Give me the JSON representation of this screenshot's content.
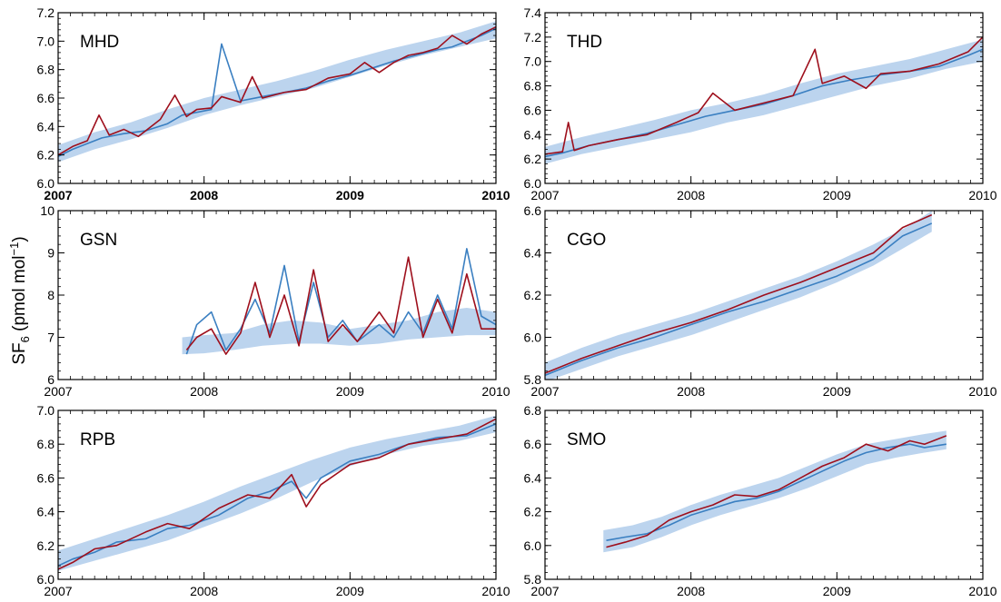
{
  "figure": {
    "ylabel_main": "SF",
    "ylabel_sub": "6",
    "ylabel_units_pre": " (pmol mol",
    "ylabel_units_sup": "−1",
    "ylabel_units_post": ")"
  },
  "colors": {
    "band": "#bcd4ee",
    "model": "#3a7fc1",
    "obs": "#9e0f1c",
    "axis": "#000000"
  },
  "chart_data": [
    {
      "type": "line",
      "station": "MHD",
      "xlim": [
        2007,
        2010
      ],
      "ylim": [
        6.0,
        7.2
      ],
      "yticks": [
        "6.0",
        "6.2",
        "6.4",
        "6.6",
        "6.8",
        "7.0",
        "7.2"
      ],
      "xticks": [
        "2007",
        "2008",
        "2009",
        "2010"
      ],
      "xtick_bold": true,
      "series": [
        {
          "role": "band",
          "x": [
            2007.0,
            2007.25,
            2007.5,
            2007.75,
            2008.0,
            2008.25,
            2008.5,
            2008.75,
            2009.0,
            2009.25,
            2009.5,
            2009.75,
            2010.0
          ],
          "upper": [
            6.27,
            6.36,
            6.43,
            6.52,
            6.6,
            6.66,
            6.72,
            6.79,
            6.87,
            6.94,
            7.0,
            7.06,
            7.14
          ],
          "lower": [
            6.15,
            6.24,
            6.31,
            6.39,
            6.48,
            6.55,
            6.61,
            6.67,
            6.75,
            6.83,
            6.9,
            6.96,
            7.02
          ]
        },
        {
          "role": "model",
          "x": [
            2007.0,
            2007.1,
            2007.2,
            2007.3,
            2007.45,
            2007.6,
            2007.75,
            2007.85,
            2007.95,
            2008.05,
            2008.12,
            2008.25,
            2008.4,
            2008.55,
            2008.7,
            2008.85,
            2009.0,
            2009.15,
            2009.3,
            2009.45,
            2009.6,
            2009.7,
            2009.8,
            2009.9,
            2010.0
          ],
          "y": [
            6.19,
            6.24,
            6.28,
            6.32,
            6.35,
            6.37,
            6.42,
            6.48,
            6.5,
            6.52,
            6.98,
            6.58,
            6.61,
            6.64,
            6.67,
            6.72,
            6.76,
            6.81,
            6.86,
            6.9,
            6.94,
            6.96,
            7.0,
            7.04,
            7.09
          ]
        },
        {
          "role": "obs",
          "x": [
            2007.0,
            2007.1,
            2007.2,
            2007.28,
            2007.35,
            2007.45,
            2007.55,
            2007.7,
            2007.8,
            2007.88,
            2007.95,
            2008.05,
            2008.12,
            2008.25,
            2008.33,
            2008.4,
            2008.55,
            2008.7,
            2008.85,
            2009.0,
            2009.1,
            2009.2,
            2009.3,
            2009.4,
            2009.5,
            2009.6,
            2009.7,
            2009.8,
            2009.9,
            2010.0
          ],
          "y": [
            6.2,
            6.26,
            6.3,
            6.48,
            6.34,
            6.38,
            6.33,
            6.45,
            6.62,
            6.47,
            6.52,
            6.53,
            6.61,
            6.57,
            6.75,
            6.6,
            6.64,
            6.66,
            6.74,
            6.77,
            6.85,
            6.78,
            6.85,
            6.9,
            6.92,
            6.95,
            7.04,
            6.98,
            7.05,
            7.1
          ]
        }
      ]
    },
    {
      "type": "line",
      "station": "THD",
      "xlim": [
        2007,
        2010
      ],
      "ylim": [
        6.0,
        7.4
      ],
      "yticks": [
        "6.0",
        "6.2",
        "6.4",
        "6.6",
        "6.8",
        "7.0",
        "7.2",
        "7.4"
      ],
      "xticks": [
        "2007",
        "2008",
        "2009",
        "2010"
      ],
      "xtick_bold": false,
      "series": [
        {
          "role": "band",
          "x": [
            2007.0,
            2007.25,
            2007.5,
            2007.75,
            2008.0,
            2008.25,
            2008.5,
            2008.75,
            2009.0,
            2009.25,
            2009.5,
            2009.75,
            2010.0
          ],
          "upper": [
            6.3,
            6.38,
            6.45,
            6.52,
            6.6,
            6.66,
            6.73,
            6.82,
            6.9,
            6.96,
            7.02,
            7.1,
            7.18
          ],
          "lower": [
            6.16,
            6.24,
            6.3,
            6.36,
            6.42,
            6.5,
            6.56,
            6.64,
            6.72,
            6.8,
            6.86,
            6.94,
            7.0
          ]
        },
        {
          "role": "model",
          "x": [
            2007.0,
            2007.12,
            2007.3,
            2007.5,
            2007.7,
            2007.9,
            2008.1,
            2008.3,
            2008.5,
            2008.7,
            2008.9,
            2009.1,
            2009.3,
            2009.5,
            2009.7,
            2009.9,
            2010.0
          ],
          "y": [
            6.22,
            6.25,
            6.31,
            6.36,
            6.41,
            6.48,
            6.55,
            6.6,
            6.65,
            6.72,
            6.8,
            6.85,
            6.89,
            6.92,
            6.96,
            7.05,
            7.1
          ]
        },
        {
          "role": "obs",
          "x": [
            2007.0,
            2007.12,
            2007.16,
            2007.2,
            2007.3,
            2007.5,
            2007.7,
            2007.9,
            2008.05,
            2008.15,
            2008.3,
            2008.5,
            2008.7,
            2008.85,
            2008.9,
            2009.05,
            2009.2,
            2009.3,
            2009.5,
            2009.7,
            2009.9,
            2010.0
          ],
          "y": [
            6.24,
            6.26,
            6.5,
            6.27,
            6.31,
            6.36,
            6.4,
            6.5,
            6.58,
            6.74,
            6.6,
            6.66,
            6.72,
            7.1,
            6.82,
            6.88,
            6.78,
            6.9,
            6.92,
            6.98,
            7.08,
            7.2
          ]
        }
      ]
    },
    {
      "type": "line",
      "station": "GSN",
      "xlim": [
        2007,
        2010
      ],
      "ylim": [
        6,
        10
      ],
      "yticks": [
        "6",
        "7",
        "8",
        "9",
        "10"
      ],
      "xticks": [
        "2007",
        "2008",
        "2009",
        "2010"
      ],
      "xtick_bold": false,
      "series": [
        {
          "role": "band",
          "x": [
            2007.85,
            2008.0,
            2008.2,
            2008.4,
            2008.6,
            2008.8,
            2009.0,
            2009.2,
            2009.4,
            2009.6,
            2009.8,
            2010.0
          ],
          "upper": [
            7.0,
            7.05,
            7.1,
            7.3,
            7.4,
            7.35,
            7.2,
            7.3,
            7.4,
            7.6,
            7.7,
            7.6
          ],
          "lower": [
            6.6,
            6.62,
            6.7,
            6.8,
            6.85,
            6.85,
            6.8,
            6.85,
            6.95,
            7.0,
            7.05,
            7.05
          ]
        },
        {
          "role": "model",
          "x": [
            2007.88,
            2007.95,
            2008.05,
            2008.15,
            2008.25,
            2008.35,
            2008.45,
            2008.55,
            2008.65,
            2008.75,
            2008.85,
            2008.95,
            2009.05,
            2009.2,
            2009.3,
            2009.4,
            2009.5,
            2009.6,
            2009.7,
            2009.8,
            2009.9,
            2010.0
          ],
          "y": [
            6.6,
            7.3,
            7.6,
            6.7,
            7.2,
            7.9,
            7.1,
            8.7,
            6.9,
            8.3,
            7.0,
            7.4,
            6.9,
            7.3,
            7.0,
            7.6,
            7.1,
            8.0,
            7.2,
            9.1,
            7.5,
            7.3
          ]
        },
        {
          "role": "obs",
          "x": [
            2007.88,
            2007.95,
            2008.05,
            2008.15,
            2008.25,
            2008.35,
            2008.45,
            2008.55,
            2008.65,
            2008.75,
            2008.85,
            2008.95,
            2009.05,
            2009.2,
            2009.3,
            2009.4,
            2009.5,
            2009.6,
            2009.7,
            2009.8,
            2009.9,
            2010.0
          ],
          "y": [
            6.7,
            7.0,
            7.2,
            6.6,
            7.1,
            8.3,
            7.0,
            8.0,
            6.8,
            8.6,
            6.9,
            7.3,
            6.9,
            7.6,
            7.1,
            8.9,
            7.0,
            7.9,
            7.1,
            8.5,
            7.2,
            7.2
          ]
        }
      ]
    },
    {
      "type": "line",
      "station": "CGO",
      "xlim": [
        2007,
        2010
      ],
      "ylim": [
        5.8,
        6.6
      ],
      "yticks": [
        "5.8",
        "6.0",
        "6.2",
        "6.4",
        "6.6"
      ],
      "xticks": [
        "2007",
        "2008",
        "2009",
        "2010"
      ],
      "xtick_bold": false,
      "series": [
        {
          "role": "band",
          "x": [
            2007.0,
            2007.25,
            2007.5,
            2007.75,
            2008.0,
            2008.25,
            2008.5,
            2008.75,
            2009.0,
            2009.25,
            2009.5,
            2009.65
          ],
          "upper": [
            5.88,
            5.95,
            6.01,
            6.06,
            6.11,
            6.17,
            6.23,
            6.29,
            6.36,
            6.44,
            6.53,
            6.6
          ],
          "lower": [
            5.79,
            5.85,
            5.91,
            5.96,
            6.01,
            6.07,
            6.13,
            6.19,
            6.26,
            6.34,
            6.44,
            6.5
          ]
        },
        {
          "role": "model",
          "x": [
            2007.0,
            2007.25,
            2007.5,
            2007.75,
            2008.0,
            2008.25,
            2008.5,
            2008.75,
            2009.0,
            2009.25,
            2009.45,
            2009.65
          ],
          "y": [
            5.82,
            5.89,
            5.95,
            6.0,
            6.06,
            6.12,
            6.17,
            6.23,
            6.29,
            6.37,
            6.48,
            6.54
          ]
        },
        {
          "role": "obs",
          "x": [
            2007.0,
            2007.25,
            2007.5,
            2007.75,
            2008.0,
            2008.25,
            2008.5,
            2008.75,
            2009.0,
            2009.25,
            2009.45,
            2009.65
          ],
          "y": [
            5.83,
            5.9,
            5.96,
            6.02,
            6.07,
            6.13,
            6.2,
            6.26,
            6.33,
            6.4,
            6.52,
            6.58
          ]
        }
      ]
    },
    {
      "type": "line",
      "station": "RPB",
      "xlim": [
        2007,
        2010
      ],
      "ylim": [
        6.0,
        7.0
      ],
      "yticks": [
        "6.0",
        "6.2",
        "6.4",
        "6.6",
        "6.8",
        "7.0"
      ],
      "xticks": [
        "2007",
        "2008",
        "2009",
        "2010"
      ],
      "xtick_bold": false,
      "series": [
        {
          "role": "band",
          "x": [
            2007.0,
            2007.25,
            2007.5,
            2007.75,
            2008.0,
            2008.25,
            2008.5,
            2008.75,
            2009.0,
            2009.25,
            2009.5,
            2009.75,
            2010.0
          ],
          "upper": [
            6.17,
            6.24,
            6.31,
            6.38,
            6.46,
            6.55,
            6.63,
            6.71,
            6.78,
            6.83,
            6.87,
            6.91,
            6.97
          ],
          "lower": [
            6.05,
            6.11,
            6.17,
            6.23,
            6.31,
            6.39,
            6.48,
            6.58,
            6.67,
            6.74,
            6.79,
            6.82,
            6.87
          ]
        },
        {
          "role": "model",
          "x": [
            2007.0,
            2007.1,
            2007.25,
            2007.4,
            2007.6,
            2007.75,
            2007.9,
            2008.1,
            2008.3,
            2008.45,
            2008.6,
            2008.7,
            2008.8,
            2009.0,
            2009.2,
            2009.4,
            2009.6,
            2009.8,
            2010.0
          ],
          "y": [
            6.08,
            6.12,
            6.16,
            6.22,
            6.24,
            6.3,
            6.32,
            6.38,
            6.48,
            6.52,
            6.58,
            6.48,
            6.6,
            6.7,
            6.74,
            6.8,
            6.84,
            6.85,
            6.92
          ]
        },
        {
          "role": "obs",
          "x": [
            2007.0,
            2007.1,
            2007.25,
            2007.4,
            2007.6,
            2007.75,
            2007.9,
            2008.1,
            2008.3,
            2008.45,
            2008.6,
            2008.7,
            2008.8,
            2009.0,
            2009.2,
            2009.4,
            2009.6,
            2009.8,
            2010.0
          ],
          "y": [
            6.06,
            6.1,
            6.18,
            6.2,
            6.28,
            6.33,
            6.3,
            6.42,
            6.5,
            6.48,
            6.62,
            6.43,
            6.56,
            6.68,
            6.72,
            6.8,
            6.83,
            6.86,
            6.95
          ]
        }
      ]
    },
    {
      "type": "line",
      "station": "SMO",
      "xlim": [
        2007,
        2010
      ],
      "ylim": [
        5.8,
        6.8
      ],
      "yticks": [
        "5.8",
        "6.0",
        "6.2",
        "6.4",
        "6.6",
        "6.8"
      ],
      "xticks": [
        "2007",
        "2008",
        "2009",
        "2010"
      ],
      "xtick_bold": false,
      "series": [
        {
          "role": "band",
          "x": [
            2007.4,
            2007.6,
            2007.8,
            2008.0,
            2008.2,
            2008.4,
            2008.6,
            2008.8,
            2009.0,
            2009.2,
            2009.4,
            2009.6,
            2009.75
          ],
          "upper": [
            6.09,
            6.12,
            6.17,
            6.24,
            6.3,
            6.35,
            6.4,
            6.47,
            6.54,
            6.6,
            6.63,
            6.66,
            6.68
          ],
          "lower": [
            5.96,
            5.99,
            6.05,
            6.12,
            6.18,
            6.23,
            6.28,
            6.34,
            6.41,
            6.48,
            6.52,
            6.55,
            6.57
          ]
        },
        {
          "role": "model",
          "x": [
            2007.42,
            2007.55,
            2007.7,
            2007.85,
            2008.0,
            2008.15,
            2008.3,
            2008.45,
            2008.6,
            2008.75,
            2008.9,
            2009.05,
            2009.2,
            2009.35,
            2009.5,
            2009.6,
            2009.75
          ],
          "y": [
            6.03,
            6.05,
            6.07,
            6.12,
            6.18,
            6.22,
            6.26,
            6.28,
            6.32,
            6.38,
            6.44,
            6.5,
            6.55,
            6.58,
            6.6,
            6.58,
            6.6
          ]
        },
        {
          "role": "obs",
          "x": [
            2007.42,
            2007.55,
            2007.7,
            2007.85,
            2008.0,
            2008.15,
            2008.3,
            2008.45,
            2008.6,
            2008.75,
            2008.9,
            2009.05,
            2009.2,
            2009.35,
            2009.5,
            2009.6,
            2009.75
          ],
          "y": [
            5.99,
            6.02,
            6.06,
            6.15,
            6.2,
            6.24,
            6.3,
            6.29,
            6.33,
            6.4,
            6.47,
            6.52,
            6.6,
            6.56,
            6.62,
            6.6,
            6.65
          ]
        }
      ]
    }
  ]
}
